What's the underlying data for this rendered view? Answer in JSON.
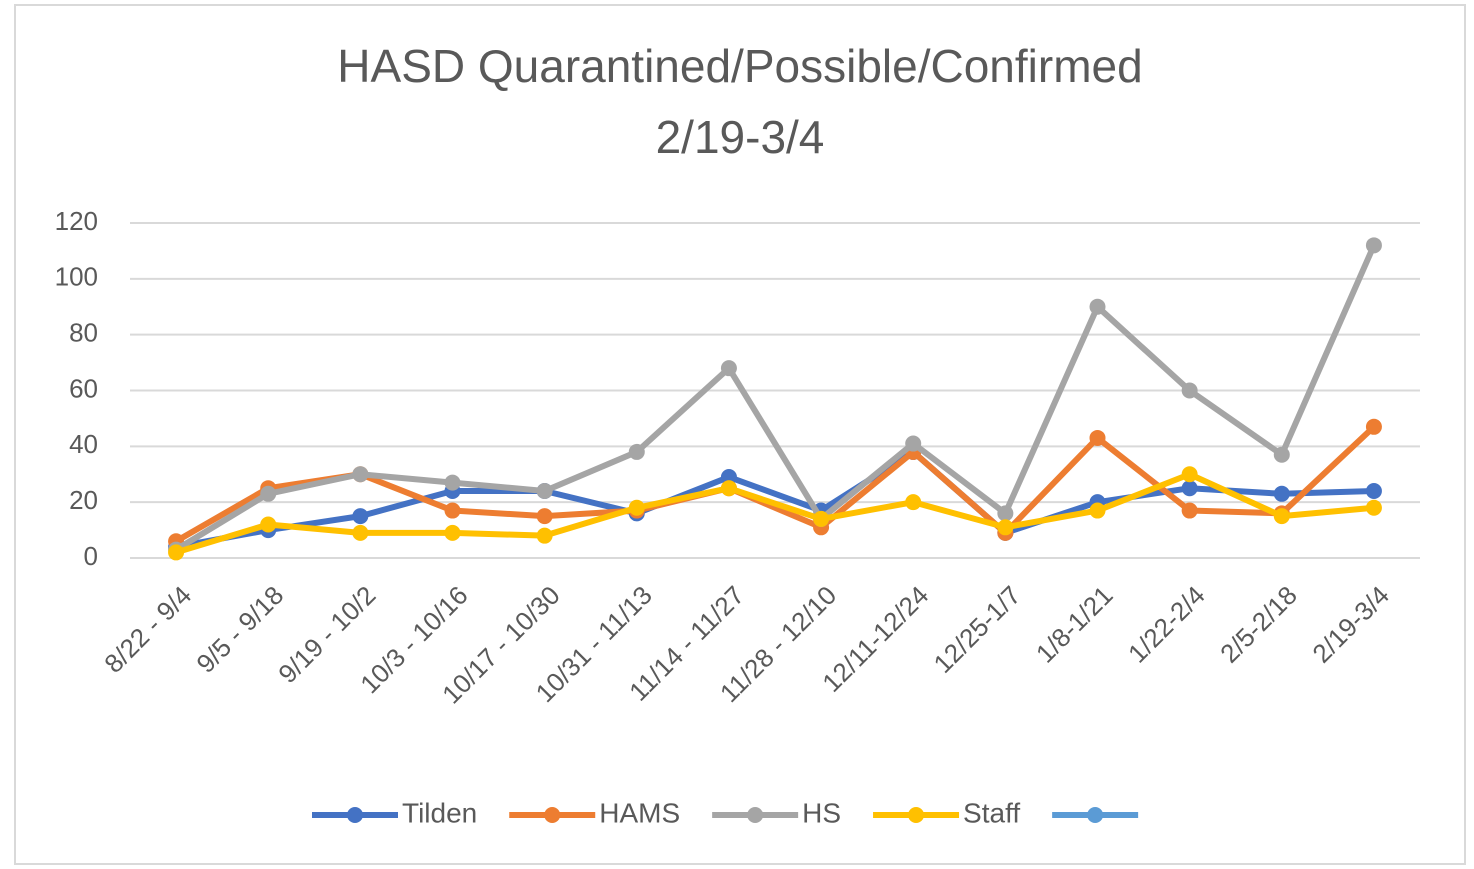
{
  "chart_data": {
    "type": "line",
    "title": "HASD Quarantined/Possible/Confirmed",
    "subtitle": "2/19-3/4",
    "categories": [
      "8/22 - 9/4",
      "9/5 - 9/18",
      "9/19 - 10/2",
      "10/3 - 10/16",
      "10/17 - 10/30",
      "10/31 - 11/13",
      "11/14 - 11/27",
      "11/28 - 12/10",
      "12/11-12/24",
      "12/25-1/7",
      "1/8-1/21",
      "1/22-2/4",
      "2/5-2/18",
      "2/19-3/4"
    ],
    "series": [
      {
        "name": "Tilden",
        "color": "#4472c4",
        "values": [
          4,
          10,
          15,
          24,
          24,
          16,
          29,
          17,
          38,
          9,
          20,
          25,
          23,
          24
        ]
      },
      {
        "name": "HAMS",
        "color": "#ed7d31",
        "values": [
          6,
          25,
          30,
          17,
          15,
          17,
          25,
          11,
          38,
          9,
          43,
          17,
          16,
          47
        ]
      },
      {
        "name": "HS",
        "color": "#a5a5a5",
        "values": [
          3,
          23,
          30,
          27,
          24,
          38,
          68,
          14,
          41,
          16,
          90,
          60,
          37,
          112
        ]
      },
      {
        "name": "Staff",
        "color": "#ffc000",
        "values": [
          2,
          12,
          9,
          9,
          8,
          18,
          25,
          14,
          20,
          11,
          17,
          30,
          15,
          18
        ]
      },
      {
        "color": "#5b9bd5",
        "values": [
          null,
          null,
          null,
          null,
          null,
          null,
          null,
          null,
          null,
          null,
          null,
          null,
          null,
          null
        ]
      }
    ],
    "ylim": [
      0,
      120
    ],
    "yticks": [
      0,
      20,
      40,
      60,
      80,
      100,
      120
    ],
    "grid": true,
    "legend": "bottom"
  }
}
